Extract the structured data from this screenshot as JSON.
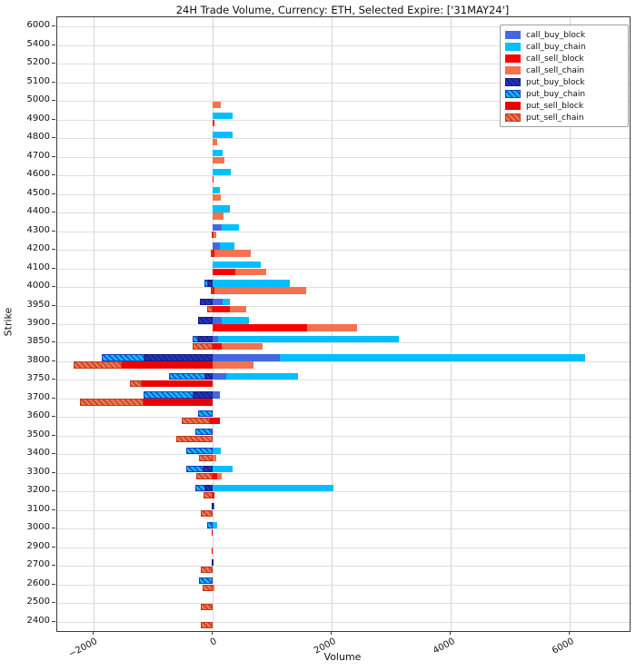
{
  "title": "24H Trade Volume, Currency: ETH, Selected Expire: ['31MAY24']",
  "chart_data": {
    "type": "bar",
    "orientation": "horizontal",
    "stacked": true,
    "title": "24H Trade Volume, Currency: ETH, Selected Expire: ['31MAY24']",
    "xlabel": "Volume",
    "ylabel": "Strike",
    "x_ticks": [
      -2000,
      0,
      2000,
      4000,
      6000
    ],
    "x_tick_labels": [
      "−2000",
      "0",
      "2000",
      "4000",
      "6000"
    ],
    "x_range": [
      -2615,
      7000
    ],
    "grid": true,
    "legend_position": "upper right",
    "categories": [
      6000,
      5400,
      5200,
      5100,
      5000,
      4900,
      4800,
      4700,
      4600,
      4500,
      4400,
      4300,
      4200,
      4100,
      4000,
      3950,
      3900,
      3850,
      3800,
      3750,
      3700,
      3600,
      3500,
      3400,
      3300,
      3200,
      3100,
      3000,
      2900,
      2700,
      2600,
      2500,
      2400
    ],
    "series": [
      {
        "name": "call_buy_block",
        "row": "buy",
        "color": "#4169E1",
        "hatch": false,
        "values": [
          0,
          0,
          0,
          0,
          0,
          0,
          0,
          0,
          0,
          0,
          0,
          140,
          110,
          0,
          0,
          170,
          150,
          90,
          1120,
          230,
          115,
          0,
          0,
          0,
          0,
          0,
          30,
          0,
          0,
          0,
          0,
          0,
          0
        ]
      },
      {
        "name": "call_buy_chain",
        "row": "buy",
        "color": "#00BFFF",
        "hatch": false,
        "values": [
          0,
          0,
          0,
          0,
          0,
          330,
          330,
          170,
          305,
          120,
          290,
          295,
          255,
          800,
          1290,
          110,
          450,
          3030,
          5130,
          1195,
          0,
          0,
          0,
          130,
          330,
          2025,
          0,
          75,
          0,
          0,
          0,
          0,
          0
        ]
      },
      {
        "name": "call_sell_block",
        "row": "sell",
        "color": "#FF0000",
        "hatch": false,
        "values": [
          0,
          0,
          0,
          0,
          0,
          20,
          0,
          0,
          15,
          0,
          0,
          0,
          25,
          380,
          25,
          280,
          1580,
          140,
          0,
          0,
          0,
          120,
          0,
          0,
          75,
          25,
          0,
          0,
          0,
          0,
          0,
          0,
          0
        ]
      },
      {
        "name": "call_sell_chain",
        "row": "sell",
        "color": "#F4724E",
        "hatch": false,
        "values": [
          0,
          0,
          0,
          0,
          130,
          0,
          65,
          190,
          0,
          130,
          180,
          60,
          610,
          510,
          1540,
          280,
          840,
          690,
          680,
          0,
          0,
          0,
          0,
          50,
          75,
          0,
          0,
          0,
          0,
          0,
          25,
          0,
          0
        ]
      },
      {
        "name": "put_buy_block",
        "row": "buy",
        "color": "#2433C0",
        "hatch": true,
        "hatch_color": "#141F7E",
        "values": [
          0,
          0,
          0,
          0,
          0,
          0,
          0,
          0,
          0,
          0,
          0,
          0,
          0,
          0,
          -80,
          -220,
          -255,
          -255,
          -1145,
          -130,
          -330,
          0,
          0,
          0,
          -160,
          -120,
          -20,
          0,
          0,
          -20,
          0,
          0,
          0
        ]
      },
      {
        "name": "put_buy_chain",
        "row": "buy",
        "color": "#00BFFF",
        "hatch": true,
        "hatch_color": "#1F3EC0",
        "values": [
          0,
          0,
          0,
          0,
          0,
          0,
          0,
          0,
          0,
          0,
          0,
          0,
          0,
          0,
          -70,
          0,
          0,
          -90,
          -727,
          -610,
          -830,
          -245,
          -290,
          -450,
          -290,
          -175,
          0,
          -90,
          0,
          0,
          -230,
          0,
          0
        ]
      },
      {
        "name": "put_sell_block",
        "row": "sell",
        "color": "#EE0000",
        "hatch": false,
        "values": [
          0,
          0,
          0,
          0,
          0,
          0,
          0,
          0,
          0,
          0,
          0,
          0,
          0,
          0,
          0,
          0,
          0,
          0,
          -1527,
          -1195,
          -1160,
          -50,
          0,
          0,
          0,
          0,
          0,
          -20,
          -25,
          0,
          0,
          0,
          0
        ]
      },
      {
        "name": "put_sell_chain",
        "row": "sell",
        "color": "#F4724E",
        "hatch": true,
        "hatch_color": "#BE3C20",
        "values": [
          0,
          0,
          0,
          0,
          0,
          0,
          0,
          0,
          0,
          0,
          0,
          -15,
          -40,
          0,
          -40,
          -90,
          0,
          -345,
          -815,
          -195,
          -1070,
          -480,
          -620,
          -230,
          -280,
          -160,
          -200,
          0,
          0,
          -200,
          -180,
          -210,
          -210
        ]
      }
    ]
  }
}
